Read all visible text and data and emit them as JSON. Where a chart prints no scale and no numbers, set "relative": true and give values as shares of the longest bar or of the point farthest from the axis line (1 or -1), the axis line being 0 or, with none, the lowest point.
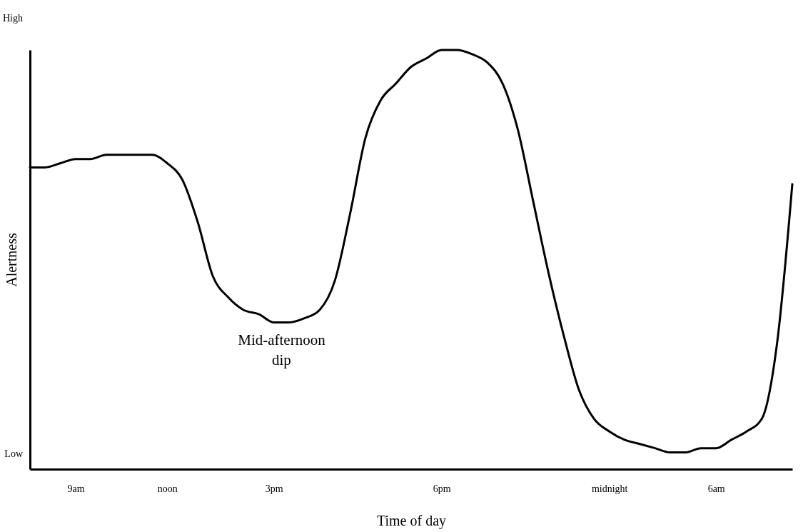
{
  "chart_data": {
    "type": "line",
    "xlabel": "Time of day",
    "ylabel": "Alertness",
    "relative": true,
    "categories": [
      null,
      null,
      null,
      "9am",
      null,
      null,
      null,
      null,
      null,
      "noon",
      null,
      null,
      null,
      null,
      null,
      null,
      "3pm",
      null,
      null,
      null,
      null,
      null,
      null,
      null,
      null,
      null,
      null,
      "6pm",
      null,
      null,
      null,
      null,
      null,
      null,
      null,
      null,
      null,
      null,
      "midnight",
      null,
      null,
      null,
      null,
      null,
      null,
      "6am",
      null,
      null,
      null,
      null,
      null
    ],
    "series": [
      {
        "color": "#000000",
        "values": [
          0.72,
          0.72,
          0.73,
          0.74,
          0.74,
          0.75,
          0.75,
          0.75,
          0.75,
          0.73,
          0.69,
          0.59,
          0.46,
          0.41,
          0.38,
          0.37,
          0.35,
          0.35,
          0.36,
          0.38,
          0.45,
          0.61,
          0.79,
          0.88,
          0.92,
          0.96,
          0.98,
          1.0,
          1.0,
          0.99,
          0.97,
          0.92,
          0.81,
          0.64,
          0.47,
          0.32,
          0.19,
          0.12,
          0.09,
          0.07,
          0.06,
          0.05,
          0.04,
          0.04,
          0.05,
          0.05,
          0.07,
          0.09,
          0.12,
          0.3,
          0.68
        ]
      }
    ],
    "annotations": [
      "High",
      "Mid-afternoon dip",
      "Low"
    ],
    "grid": false,
    "legend": false,
    "marker": "none",
    "line_style": "solid"
  }
}
